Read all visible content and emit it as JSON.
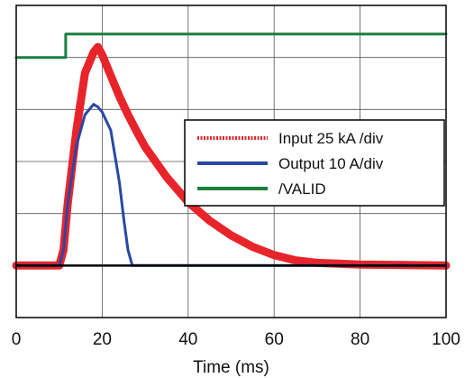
{
  "chart_data": {
    "type": "line",
    "xlabel": "Time (ms)",
    "ylabel": "",
    "title": "",
    "xlim": [
      0,
      100
    ],
    "ylim": [
      -1,
      5
    ],
    "x_ticks": [
      0,
      20,
      40,
      60,
      80,
      100
    ],
    "x_tick_labels": [
      "0",
      "20",
      "40",
      "60",
      "80",
      "100"
    ],
    "grid": true,
    "legend_position": "right",
    "baseline_y": 0,
    "series": [
      {
        "name": "Input 25 kA /div",
        "color": "#e8242b",
        "style": "dotted",
        "x": [
          0,
          10,
          11,
          12,
          14,
          16,
          18,
          19,
          20,
          22,
          24,
          26,
          28,
          30,
          35,
          40,
          45,
          50,
          55,
          60,
          65,
          70,
          80,
          90,
          100
        ],
        "y": [
          0,
          0,
          0.3,
          1.2,
          2.6,
          3.7,
          4.1,
          4.2,
          4.05,
          3.65,
          3.25,
          2.9,
          2.58,
          2.28,
          1.7,
          1.22,
          0.86,
          0.58,
          0.36,
          0.2,
          0.1,
          0.05,
          0.02,
          0.01,
          0
        ]
      },
      {
        "name": "Output 10 A/div",
        "color": "#2a47a5",
        "style": "solid",
        "x": [
          0,
          10,
          11,
          12,
          14,
          16,
          18,
          19,
          20,
          22,
          24,
          25,
          26,
          27,
          30,
          40,
          60,
          80,
          100
        ],
        "y": [
          0,
          0,
          0.3,
          1.2,
          2.3,
          2.9,
          3.1,
          3.05,
          2.95,
          2.6,
          1.6,
          0.9,
          0.3,
          0,
          0,
          0,
          0,
          0,
          0
        ]
      },
      {
        "name": "/VALID",
        "color": "#1a7f3c",
        "style": "solid",
        "x": [
          0,
          11.5,
          11.5,
          100
        ],
        "y": [
          4,
          4,
          4.45,
          4.45
        ]
      }
    ]
  }
}
